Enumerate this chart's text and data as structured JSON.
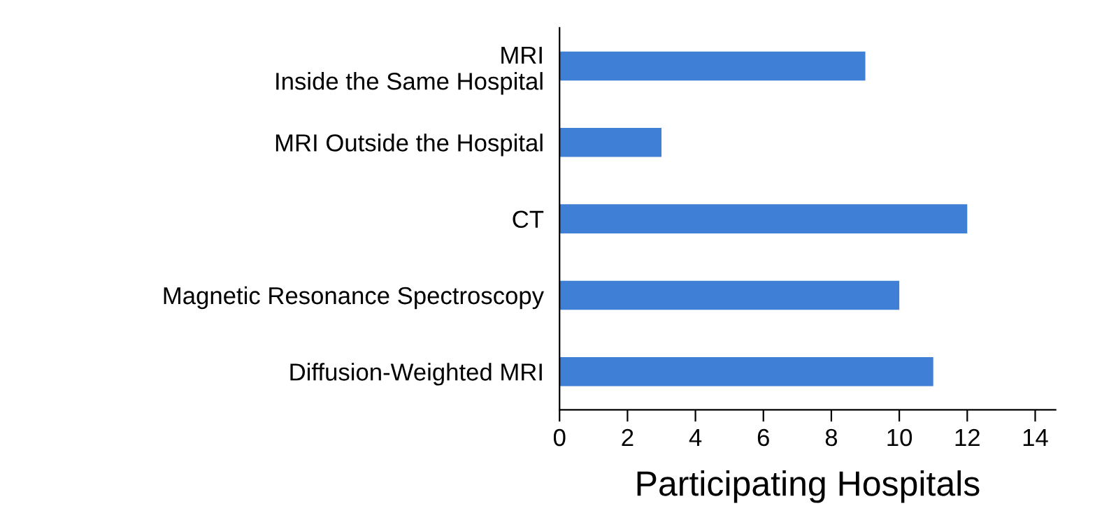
{
  "chart_data": {
    "type": "bar",
    "orientation": "horizontal",
    "xlabel": "Participating Hospitals",
    "categories": [
      "MRI\nInside the Same Hospital",
      "MRI Outside the Hospital",
      "CT",
      "Magnetic Resonance Spectroscopy",
      "Diffusion-Weighted MRI"
    ],
    "values": [
      9,
      3,
      12,
      10,
      11
    ],
    "color": "#3f7fd6",
    "xlim": [
      0,
      14.6
    ],
    "xticks": [
      0,
      2,
      4,
      6,
      8,
      10,
      12,
      14
    ],
    "grid": false,
    "legend": false
  }
}
